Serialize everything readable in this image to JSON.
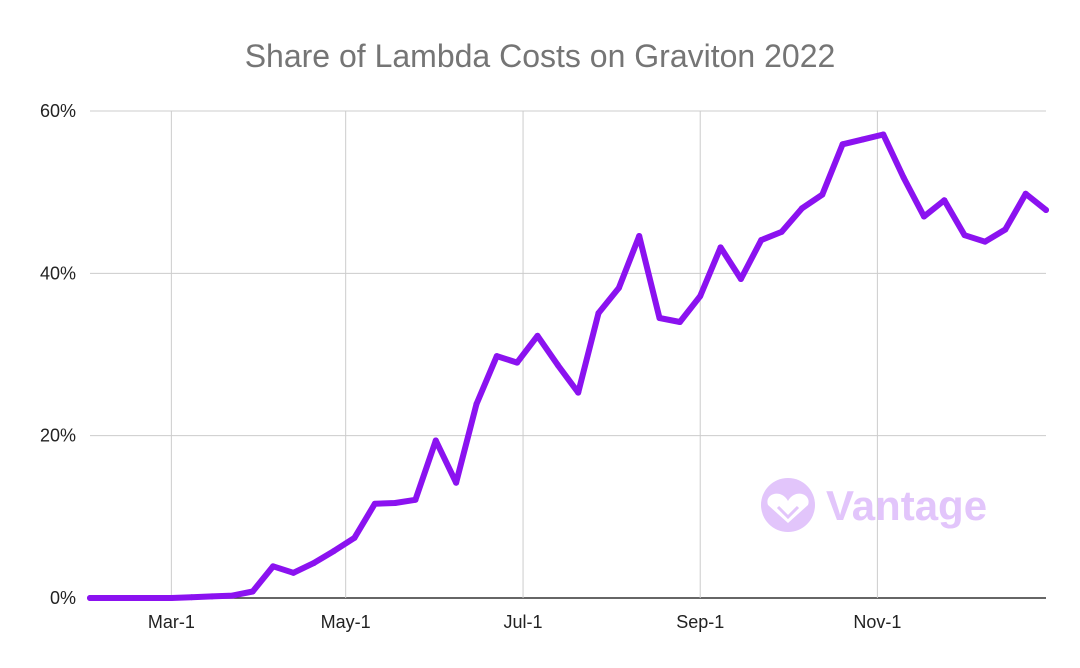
{
  "chart_data": {
    "type": "line",
    "title": "Share of Lambda Costs on Graviton 2022",
    "xlabel": "",
    "ylabel": "",
    "x_start": "2022-02-01",
    "x_step_days": 7,
    "x_ticks": [
      {
        "label": "Mar-1",
        "week_index": 4
      },
      {
        "label": "May-1",
        "week_index": 12.57
      },
      {
        "label": "Jul-1",
        "week_index": 21.29
      },
      {
        "label": "Sep-1",
        "week_index": 30
      },
      {
        "label": "Nov-1",
        "week_index": 38.71
      }
    ],
    "y_ticks": [
      {
        "label": "0%",
        "value": 0
      },
      {
        "label": "20%",
        "value": 20
      },
      {
        "label": "40%",
        "value": 40
      },
      {
        "label": "60%",
        "value": 60
      }
    ],
    "ylim": [
      0,
      60
    ],
    "grid": true,
    "legend": "none",
    "series": [
      {
        "name": "Share of Lambda Costs on Graviton",
        "color": "#8b12f0",
        "values": [
          0,
          0,
          0,
          0,
          0,
          0.1,
          0.2,
          0.3,
          0.8,
          3.9,
          3.1,
          4.3,
          5.8,
          7.4,
          11.6,
          11.7,
          12.1,
          19.4,
          14.2,
          23.9,
          29.8,
          29.0,
          32.3,
          28.7,
          25.3,
          35.1,
          38.2,
          44.6,
          34.5,
          34.0,
          37.2,
          43.2,
          39.3,
          44.1,
          45.1,
          48.0,
          49.7,
          55.9,
          56.5,
          57.1,
          51.8,
          47.0,
          49.0,
          44.7,
          43.9,
          45.4,
          49.8,
          47.8
        ]
      }
    ],
    "watermark": {
      "text": "Vantage",
      "color": "#e2c5fb"
    }
  }
}
